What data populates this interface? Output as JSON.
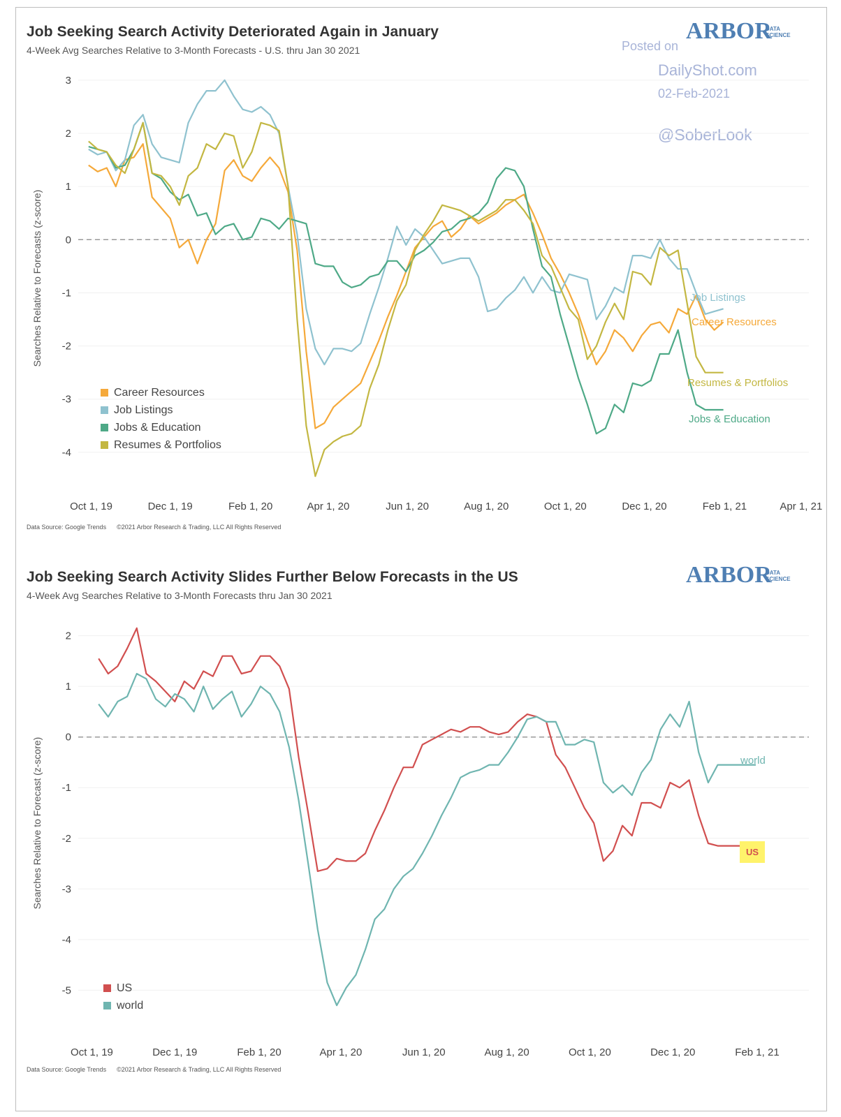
{
  "brand": {
    "name": "ARBOR",
    "tag_line1": "DATA",
    "tag_line2": "SCIENCE"
  },
  "watermark": {
    "line1": "Posted on",
    "line2": "DailyShot.com",
    "line3": "02-Feb-2021",
    "line4": "@SoberLook",
    "color": "#a8b4d8"
  },
  "footer": {
    "source": "Data Source: Google Trends",
    "copyright": "©2021 Arbor Research & Trading, LLC   All Rights Reserved"
  },
  "chart_data": [
    {
      "type": "line",
      "title": "Job Seeking Search Activity Deteriorated Again in January",
      "subtitle": "4-Week Avg Searches Relative to 3-Month Forecasts - U.S. thru Jan 30 2021",
      "xlabel": "",
      "ylabel": "Searches Relative to Forecasts (z-score)",
      "x_ticks": [
        "Oct 1, 19",
        "Dec 1, 19",
        "Feb 1, 20",
        "Apr 1, 20",
        "Jun 1, 20",
        "Aug 1, 20",
        "Oct 1, 20",
        "Dec 1, 20",
        "Feb 1, 21",
        "Apr 1, 21"
      ],
      "y_ticks": [
        3,
        2,
        1,
        0,
        -1,
        -2,
        -3,
        -4
      ],
      "xlim": [
        "2019-09-21",
        "2021-04-07"
      ],
      "ylim": [
        -4.75,
        3.3
      ],
      "reference_line": 0,
      "legend_position": "bottom-left",
      "x": [
        "2019-09-29",
        "2019-10-06",
        "2019-10-13",
        "2019-10-20",
        "2019-10-27",
        "2019-11-03",
        "2019-11-10",
        "2019-11-17",
        "2019-11-24",
        "2019-12-01",
        "2019-12-08",
        "2019-12-15",
        "2019-12-22",
        "2019-12-29",
        "2020-01-05",
        "2020-01-12",
        "2020-01-19",
        "2020-01-26",
        "2020-02-02",
        "2020-02-09",
        "2020-02-16",
        "2020-02-23",
        "2020-03-01",
        "2020-03-08",
        "2020-03-15",
        "2020-03-22",
        "2020-03-29",
        "2020-04-05",
        "2020-04-12",
        "2020-04-19",
        "2020-04-26",
        "2020-05-03",
        "2020-05-10",
        "2020-05-17",
        "2020-05-24",
        "2020-05-31",
        "2020-06-07",
        "2020-06-14",
        "2020-06-21",
        "2020-06-28",
        "2020-07-05",
        "2020-07-12",
        "2020-07-19",
        "2020-07-26",
        "2020-08-02",
        "2020-08-09",
        "2020-08-16",
        "2020-08-23",
        "2020-08-30",
        "2020-09-06",
        "2020-09-13",
        "2020-09-20",
        "2020-09-27",
        "2020-10-04",
        "2020-10-11",
        "2020-10-18",
        "2020-10-25",
        "2020-11-01",
        "2020-11-08",
        "2020-11-15",
        "2020-11-22",
        "2020-11-29",
        "2020-12-06",
        "2020-12-13",
        "2020-12-20",
        "2020-12-27",
        "2021-01-03",
        "2021-01-10",
        "2021-01-17",
        "2021-01-24",
        "2021-01-31"
      ],
      "series": [
        {
          "name": "Career Resources",
          "color": "#f5a93a",
          "values": [
            1.4,
            1.28,
            1.35,
            1.0,
            1.5,
            1.55,
            1.8,
            0.8,
            0.6,
            0.4,
            -0.15,
            0.0,
            -0.45,
            0.0,
            0.3,
            1.3,
            1.5,
            1.2,
            1.1,
            1.35,
            1.55,
            1.35,
            0.9,
            -0.2,
            -2.1,
            -3.55,
            -3.45,
            -3.15,
            -3.0,
            -2.85,
            -2.7,
            -2.3,
            -1.9,
            -1.45,
            -1.05,
            -0.6,
            -0.15,
            0.05,
            0.25,
            0.35,
            0.05,
            0.2,
            0.45,
            0.3,
            0.4,
            0.5,
            0.65,
            0.75,
            0.85,
            0.5,
            0.1,
            -0.35,
            -0.65,
            -1.0,
            -1.4,
            -1.9,
            -2.35,
            -2.1,
            -1.7,
            -1.85,
            -2.1,
            -1.8,
            -1.6,
            -1.55,
            -1.75,
            -1.3,
            -1.4,
            -1.05,
            -1.5,
            -1.7,
            -1.55
          ]
        },
        {
          "name": "Job Listings",
          "color": "#8fc2cf",
          "values": [
            1.7,
            1.6,
            1.65,
            1.3,
            1.5,
            2.15,
            2.35,
            1.8,
            1.55,
            1.5,
            1.45,
            2.2,
            2.55,
            2.8,
            2.8,
            3.0,
            2.7,
            2.45,
            2.4,
            2.5,
            2.35,
            2.0,
            1.0,
            0.1,
            -1.3,
            -2.05,
            -2.35,
            -2.05,
            -2.05,
            -2.1,
            -1.95,
            -1.4,
            -0.9,
            -0.35,
            0.25,
            -0.1,
            0.2,
            0.05,
            -0.2,
            -0.45,
            -0.4,
            -0.35,
            -0.35,
            -0.7,
            -1.35,
            -1.3,
            -1.1,
            -0.95,
            -0.7,
            -1.0,
            -0.7,
            -0.95,
            -1.0,
            -0.65,
            -0.7,
            -0.75,
            -1.5,
            -1.25,
            -0.9,
            -1.0,
            -0.3,
            -0.3,
            -0.35,
            0.0,
            -0.35,
            -0.55,
            -0.55,
            -1.0,
            -1.4,
            -1.35,
            -1.3
          ]
        },
        {
          "name": "Jobs & Education",
          "color": "#4ea987",
          "values": [
            1.75,
            1.7,
            1.65,
            1.35,
            1.4,
            1.7,
            2.2,
            1.25,
            1.15,
            0.9,
            0.75,
            0.85,
            0.45,
            0.5,
            0.1,
            0.25,
            0.3,
            0.0,
            0.05,
            0.4,
            0.35,
            0.2,
            0.4,
            0.35,
            0.3,
            -0.45,
            -0.5,
            -0.5,
            -0.8,
            -0.9,
            -0.85,
            -0.7,
            -0.65,
            -0.4,
            -0.4,
            -0.6,
            -0.3,
            -0.2,
            -0.05,
            0.15,
            0.2,
            0.35,
            0.4,
            0.5,
            0.7,
            1.15,
            1.35,
            1.3,
            1.0,
            0.2,
            -0.5,
            -0.7,
            -1.4,
            -2.0,
            -2.6,
            -3.1,
            -3.65,
            -3.55,
            -3.1,
            -3.25,
            -2.7,
            -2.75,
            -2.65,
            -2.15,
            -2.15,
            -1.7,
            -2.5,
            -3.1,
            -3.2,
            -3.2,
            -3.2
          ]
        },
        {
          "name": "Resumes & Portfolios",
          "color": "#c3b742",
          "values": [
            1.85,
            1.7,
            1.65,
            1.4,
            1.25,
            1.7,
            2.2,
            1.25,
            1.2,
            1.0,
            0.65,
            1.2,
            1.35,
            1.8,
            1.7,
            2.0,
            1.95,
            1.35,
            1.65,
            2.2,
            2.15,
            2.05,
            1.0,
            -1.5,
            -3.5,
            -4.45,
            -3.95,
            -3.8,
            -3.7,
            -3.65,
            -3.5,
            -2.8,
            -2.35,
            -1.7,
            -1.15,
            -0.85,
            -0.2,
            0.1,
            0.35,
            0.65,
            0.6,
            0.55,
            0.45,
            0.35,
            0.45,
            0.55,
            0.75,
            0.75,
            0.55,
            0.3,
            -0.3,
            -0.5,
            -0.9,
            -1.3,
            -1.5,
            -2.25,
            -2.0,
            -1.55,
            -1.2,
            -1.5,
            -0.6,
            -0.65,
            -0.85,
            -0.15,
            -0.3,
            -0.2,
            -1.2,
            -2.2,
            -2.5,
            -2.5,
            -2.5
          ]
        }
      ],
      "series_labels": [
        "Job Listings",
        "Career Resources",
        "Resumes & Portfolios",
        "Jobs & Education"
      ]
    },
    {
      "type": "line",
      "title": "Job Seeking Search Activity Slides Further Below Forecasts in the US",
      "subtitle": "4-Week Avg Searches Relative to 3-Month Forecasts thru Jan 30 2021",
      "xlabel": "",
      "ylabel": "Searches Relative to Forecast (z-score)",
      "x_ticks": [
        "Oct 1, 19",
        "Dec 1, 19",
        "Feb 1, 20",
        "Apr 1, 20",
        "Jun 1, 20",
        "Aug 1, 20",
        "Oct 1, 20",
        "Dec 1, 20",
        "Feb 1, 21"
      ],
      "y_ticks": [
        2,
        1,
        0,
        -1,
        -2,
        -3,
        -4,
        -5
      ],
      "xlim": [
        "2019-09-21",
        "2021-03-11"
      ],
      "ylim": [
        -5.85,
        2.45
      ],
      "reference_line": 0,
      "legend_position": "bottom-left",
      "x": [
        "2019-10-06",
        "2019-10-13",
        "2019-10-20",
        "2019-10-27",
        "2019-11-03",
        "2019-11-10",
        "2019-11-17",
        "2019-11-24",
        "2019-12-01",
        "2019-12-08",
        "2019-12-15",
        "2019-12-22",
        "2019-12-29",
        "2020-01-05",
        "2020-01-12",
        "2020-01-19",
        "2020-01-26",
        "2020-02-02",
        "2020-02-09",
        "2020-02-16",
        "2020-02-23",
        "2020-03-01",
        "2020-03-08",
        "2020-03-15",
        "2020-03-22",
        "2020-03-29",
        "2020-04-05",
        "2020-04-12",
        "2020-04-19",
        "2020-04-26",
        "2020-05-03",
        "2020-05-10",
        "2020-05-17",
        "2020-05-24",
        "2020-05-31",
        "2020-06-07",
        "2020-06-14",
        "2020-06-21",
        "2020-06-28",
        "2020-07-05",
        "2020-07-12",
        "2020-07-19",
        "2020-07-26",
        "2020-08-02",
        "2020-08-09",
        "2020-08-16",
        "2020-08-23",
        "2020-08-30",
        "2020-09-06",
        "2020-09-13",
        "2020-09-20",
        "2020-09-27",
        "2020-10-04",
        "2020-10-11",
        "2020-10-18",
        "2020-10-25",
        "2020-11-01",
        "2020-11-08",
        "2020-11-15",
        "2020-11-22",
        "2020-11-29",
        "2020-12-06",
        "2020-12-13",
        "2020-12-20",
        "2020-12-27",
        "2021-01-03",
        "2021-01-10",
        "2021-01-17",
        "2021-01-24",
        "2021-01-31"
      ],
      "series": [
        {
          "name": "US",
          "color": "#d14f4f",
          "values": [
            1.55,
            1.25,
            1.4,
            1.75,
            2.15,
            1.25,
            1.1,
            0.9,
            0.7,
            1.1,
            0.95,
            1.3,
            1.2,
            1.6,
            1.6,
            1.25,
            1.3,
            1.6,
            1.6,
            1.4,
            0.95,
            -0.4,
            -1.5,
            -2.65,
            -2.6,
            -2.4,
            -2.45,
            -2.45,
            -2.3,
            -1.85,
            -1.45,
            -1.0,
            -0.6,
            -0.6,
            -0.15,
            -0.05,
            0.05,
            0.15,
            0.1,
            0.2,
            0.2,
            0.1,
            0.05,
            0.1,
            0.3,
            0.45,
            0.4,
            0.3,
            -0.35,
            -0.6,
            -1.0,
            -1.4,
            -1.7,
            -2.45,
            -2.25,
            -1.75,
            -1.95,
            -1.3,
            -1.3,
            -1.4,
            -0.9,
            -1.0,
            -0.85,
            -1.55,
            -2.1,
            -2.15,
            -2.15,
            -2.15,
            -2.15,
            -2.15
          ]
        },
        {
          "name": "world",
          "color": "#6fb5b0",
          "values": [
            0.65,
            0.4,
            0.7,
            0.8,
            1.25,
            1.15,
            0.75,
            0.6,
            0.85,
            0.75,
            0.5,
            1.0,
            0.55,
            0.75,
            0.9,
            0.4,
            0.65,
            1.0,
            0.85,
            0.5,
            -0.2,
            -1.25,
            -2.5,
            -3.8,
            -4.85,
            -5.3,
            -4.95,
            -4.7,
            -4.2,
            -3.6,
            -3.4,
            -3.0,
            -2.75,
            -2.6,
            -2.3,
            -1.95,
            -1.55,
            -1.2,
            -0.8,
            -0.7,
            -0.65,
            -0.55,
            -0.55,
            -0.3,
            0.0,
            0.35,
            0.4,
            0.3,
            0.3,
            -0.15,
            -0.15,
            -0.05,
            -0.1,
            -0.9,
            -1.1,
            -0.95,
            -1.15,
            -0.7,
            -0.45,
            0.15,
            0.45,
            0.2,
            0.7,
            -0.3,
            -0.9,
            -0.55,
            -0.55,
            -0.55,
            -0.55,
            -0.55
          ]
        }
      ],
      "series_labels": [
        "world",
        "US"
      ],
      "highlight_label": {
        "text": "US",
        "color": "#fff36b"
      }
    }
  ]
}
